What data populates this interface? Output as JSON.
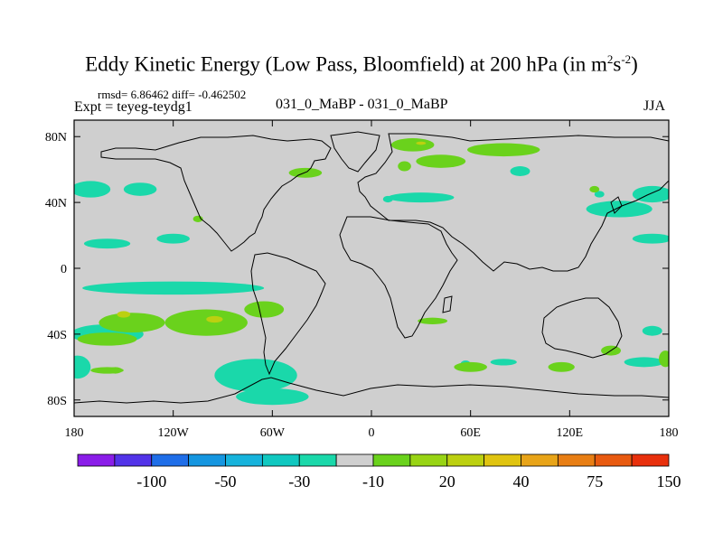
{
  "header": {
    "title_main": "Eddy Kinetic Energy (Low Pass, Bloomfield) at 200 hPa (in m",
    "title_sup1": "2",
    "title_mid": "s",
    "title_sup2": "-2",
    "title_end": ")",
    "rmsd_text": "rmsd= 6.86462 diff= -0.462502",
    "expt_text": "Expt = teyeg-teydg1",
    "center_label": "031_0_MaBP - 031_0_MaBP",
    "season": "JJA"
  },
  "chart_data": {
    "type": "heatmap",
    "title": "Eddy Kinetic Energy (Low Pass, Bloomfield) at 200 hPa (in m2s-2)",
    "projection": "cylindrical equidistant",
    "xlim": [
      -180,
      180
    ],
    "ylim": [
      -90,
      90
    ],
    "x_ticks": [
      {
        "value": -180,
        "label": "180"
      },
      {
        "value": -120,
        "label": "120W"
      },
      {
        "value": -60,
        "label": "60W"
      },
      {
        "value": 0,
        "label": "0"
      },
      {
        "value": 60,
        "label": "60E"
      },
      {
        "value": 120,
        "label": "120E"
      },
      {
        "value": 180,
        "label": "180"
      }
    ],
    "y_ticks": [
      {
        "value": 80,
        "label": "80N"
      },
      {
        "value": 40,
        "label": "40N"
      },
      {
        "value": 0,
        "label": "0"
      },
      {
        "value": -40,
        "label": "40S"
      },
      {
        "value": -80,
        "label": "80S"
      }
    ],
    "background_color": "#cfcfcf",
    "colorbar": {
      "colors": [
        "#8a1de8",
        "#5233e8",
        "#1f6ee8",
        "#1596e0",
        "#16b3dc",
        "#10c8c0",
        "#1ad8aa",
        "#cfcfcf",
        "#6ad21c",
        "#98d414",
        "#bcd010",
        "#e0c410",
        "#e8a418",
        "#e87e14",
        "#e85a10",
        "#e8300c"
      ],
      "labels": [
        {
          "after_box": 2,
          "text": "-100"
        },
        {
          "after_box": 4,
          "text": "-50"
        },
        {
          "after_box": 6,
          "text": "-30"
        },
        {
          "after_box": 8,
          "text": "-10"
        },
        {
          "after_box": 10,
          "text": "20"
        },
        {
          "after_box": 12,
          "text": "40"
        },
        {
          "after_box": 14,
          "text": "75"
        },
        {
          "after_box": 16,
          "text": "150"
        }
      ]
    },
    "regions": [
      {
        "level": "-10",
        "color": "#1ad8aa",
        "lon": -170,
        "lat": 48,
        "rlon": 12,
        "rlat": 5
      },
      {
        "level": "-10",
        "color": "#1ad8aa",
        "lon": -140,
        "lat": 48,
        "rlon": 10,
        "rlat": 4
      },
      {
        "level": "-10",
        "color": "#1ad8aa",
        "lon": -160,
        "lat": 15,
        "rlon": 14,
        "rlat": 3
      },
      {
        "level": "-10",
        "color": "#1ad8aa",
        "lon": -120,
        "lat": 18,
        "rlon": 10,
        "rlat": 3
      },
      {
        "level": "-10",
        "color": "#1ad8aa",
        "lon": -120,
        "lat": -12,
        "rlon": 55,
        "rlat": 4
      },
      {
        "level": "-10",
        "color": "#1ad8aa",
        "lon": -160,
        "lat": -40,
        "rlon": 22,
        "rlat": 6
      },
      {
        "level": "-10",
        "color": "#1ad8aa",
        "lon": -178,
        "lat": -60,
        "rlon": 8,
        "rlat": 7
      },
      {
        "level": "-10",
        "color": "#1ad8aa",
        "lon": -70,
        "lat": -65,
        "rlon": 25,
        "rlat": 10
      },
      {
        "level": "-10",
        "color": "#1ad8aa",
        "lon": -60,
        "lat": -78,
        "rlon": 22,
        "rlat": 5
      },
      {
        "level": "-10",
        "color": "#1ad8aa",
        "lon": 90,
        "lat": 59,
        "rlon": 6,
        "rlat": 3
      },
      {
        "level": "-10",
        "color": "#1ad8aa",
        "lon": 30,
        "lat": 43,
        "rlon": 20,
        "rlat": 3
      },
      {
        "level": "-10",
        "color": "#1ad8aa",
        "lon": 10,
        "lat": 42,
        "rlon": 3,
        "rlat": 2
      },
      {
        "level": "-10",
        "color": "#1ad8aa",
        "lon": 150,
        "lat": 36,
        "rlon": 20,
        "rlat": 5
      },
      {
        "level": "-10",
        "color": "#1ad8aa",
        "lon": 170,
        "lat": 45,
        "rlon": 12,
        "rlat": 5
      },
      {
        "level": "-10",
        "color": "#1ad8aa",
        "lon": 170,
        "lat": 18,
        "rlon": 12,
        "rlat": 3
      },
      {
        "level": "-10",
        "color": "#1ad8aa",
        "lon": 170,
        "lat": -38,
        "rlon": 6,
        "rlat": 3
      },
      {
        "level": "-10",
        "color": "#1ad8aa",
        "lon": 165,
        "lat": -57,
        "rlon": 12,
        "rlat": 3
      },
      {
        "level": "-10",
        "color": "#1ad8aa",
        "lon": 80,
        "lat": -57,
        "rlon": 8,
        "rlat": 2
      },
      {
        "level": "-10",
        "color": "#1ad8aa",
        "lon": 57,
        "lat": -58,
        "rlon": 3,
        "rlat": 2
      },
      {
        "level": "-10",
        "color": "#1ad8aa",
        "lon": 138,
        "lat": 45,
        "rlon": 3,
        "rlat": 2
      },
      {
        "level": "20",
        "color": "#6ad21c",
        "lon": -145,
        "lat": -33,
        "rlon": 20,
        "rlat": 6
      },
      {
        "level": "20",
        "color": "#6ad21c",
        "lon": -100,
        "lat": -33,
        "rlon": 25,
        "rlat": 8
      },
      {
        "level": "20",
        "color": "#6ad21c",
        "lon": -160,
        "lat": -43,
        "rlon": 18,
        "rlat": 4
      },
      {
        "level": "20",
        "color": "#6ad21c",
        "lon": -155,
        "lat": -62,
        "rlon": 4,
        "rlat": 2
      },
      {
        "level": "20",
        "color": "#6ad21c",
        "lon": -65,
        "lat": -25,
        "rlon": 12,
        "rlat": 5
      },
      {
        "level": "20",
        "color": "#6ad21c",
        "lon": -40,
        "lat": 58,
        "rlon": 10,
        "rlat": 3
      },
      {
        "level": "20",
        "color": "#6ad21c",
        "lon": 25,
        "lat": 75,
        "rlon": 13,
        "rlat": 4
      },
      {
        "level": "20",
        "color": "#6ad21c",
        "lon": 42,
        "lat": 65,
        "rlon": 15,
        "rlat": 4
      },
      {
        "level": "20",
        "color": "#6ad21c",
        "lon": 80,
        "lat": 72,
        "rlon": 22,
        "rlat": 4
      },
      {
        "level": "20",
        "color": "#6ad21c",
        "lon": 20,
        "lat": 62,
        "rlon": 4,
        "rlat": 3
      },
      {
        "level": "20",
        "color": "#6ad21c",
        "lon": -105,
        "lat": 30,
        "rlon": 3,
        "rlat": 2
      },
      {
        "level": "20",
        "color": "#6ad21c",
        "lon": 135,
        "lat": 48,
        "rlon": 3,
        "rlat": 2
      },
      {
        "level": "20",
        "color": "#6ad21c",
        "lon": 37,
        "lat": -32,
        "rlon": 9,
        "rlat": 2
      },
      {
        "level": "20",
        "color": "#6ad21c",
        "lon": 60,
        "lat": -60,
        "rlon": 10,
        "rlat": 3
      },
      {
        "level": "20",
        "color": "#6ad21c",
        "lon": 115,
        "lat": -60,
        "rlon": 8,
        "rlat": 3
      },
      {
        "level": "20",
        "color": "#6ad21c",
        "lon": 145,
        "lat": -50,
        "rlon": 6,
        "rlat": 3
      },
      {
        "level": "20",
        "color": "#6ad21c",
        "lon": 178,
        "lat": -55,
        "rlon": 4,
        "rlat": 5
      },
      {
        "level": "20",
        "color": "#6ad21c",
        "lon": -160,
        "lat": -62,
        "rlon": 10,
        "rlat": 2
      },
      {
        "level": "40",
        "color": "#bcd010",
        "lon": -150,
        "lat": -28,
        "rlon": 4,
        "rlat": 2
      },
      {
        "level": "40",
        "color": "#bcd010",
        "lon": -95,
        "lat": -31,
        "rlon": 5,
        "rlat": 2
      },
      {
        "level": "40",
        "color": "#bcd010",
        "lon": 30,
        "lat": 76,
        "rlon": 3,
        "rlat": 1
      }
    ]
  }
}
